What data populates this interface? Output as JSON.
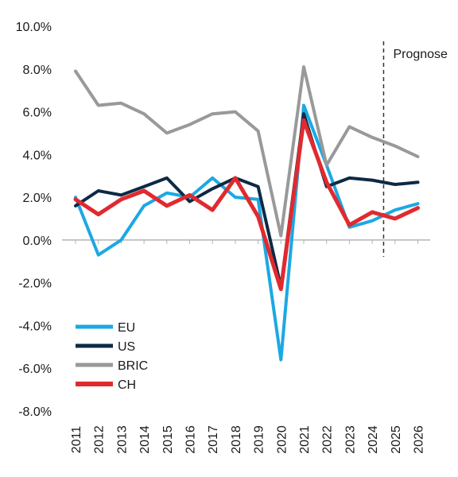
{
  "chart_data": {
    "type": "line",
    "title": "",
    "xlabel": "",
    "ylabel": "",
    "x": [
      "2011",
      "2012",
      "2013",
      "2014",
      "2015",
      "2016",
      "2017",
      "2018",
      "2019",
      "2020",
      "2021",
      "2022",
      "2023",
      "2024",
      "2025",
      "2026"
    ],
    "ylim": [
      -8.0,
      10.0
    ],
    "yticks": [
      -8.0,
      -6.0,
      -4.0,
      -2.0,
      0.0,
      2.0,
      4.0,
      6.0,
      8.0,
      10.0
    ],
    "ytick_labels": [
      "-8.0%",
      "-6.0%",
      "-4.0%",
      "-2.0%",
      "0.0%",
      "2.0%",
      "4.0%",
      "6.0%",
      "8.0%",
      "10.0%"
    ],
    "grid": false,
    "legend_position": "bottom-left",
    "series": [
      {
        "name": "EU",
        "color": "#1ca8e3",
        "values": [
          2.0,
          -0.7,
          0.0,
          1.6,
          2.2,
          2.0,
          2.9,
          2.0,
          1.9,
          -5.6,
          6.3,
          3.5,
          0.6,
          0.9,
          1.4,
          1.7
        ]
      },
      {
        "name": "US",
        "color": "#0d2a44",
        "values": [
          1.6,
          2.3,
          2.1,
          2.5,
          2.9,
          1.8,
          2.4,
          2.9,
          2.5,
          -2.2,
          5.9,
          2.5,
          2.9,
          2.8,
          2.6,
          2.7
        ]
      },
      {
        "name": "BRIC",
        "color": "#999999",
        "values": [
          7.9,
          6.3,
          6.4,
          5.9,
          5.0,
          5.4,
          5.9,
          6.0,
          5.1,
          0.2,
          8.1,
          3.5,
          5.3,
          4.8,
          4.4,
          3.9
        ]
      },
      {
        "name": "CH",
        "color": "#e02a2f",
        "values": [
          1.9,
          1.2,
          1.9,
          2.3,
          1.6,
          2.1,
          1.4,
          2.9,
          1.1,
          -2.3,
          5.6,
          2.7,
          0.7,
          1.3,
          1.0,
          1.5
        ]
      }
    ],
    "annotations": [
      {
        "text": "Prognose",
        "between": [
          "2024",
          "2025"
        ],
        "style": "dashed-vertical-line"
      }
    ]
  }
}
